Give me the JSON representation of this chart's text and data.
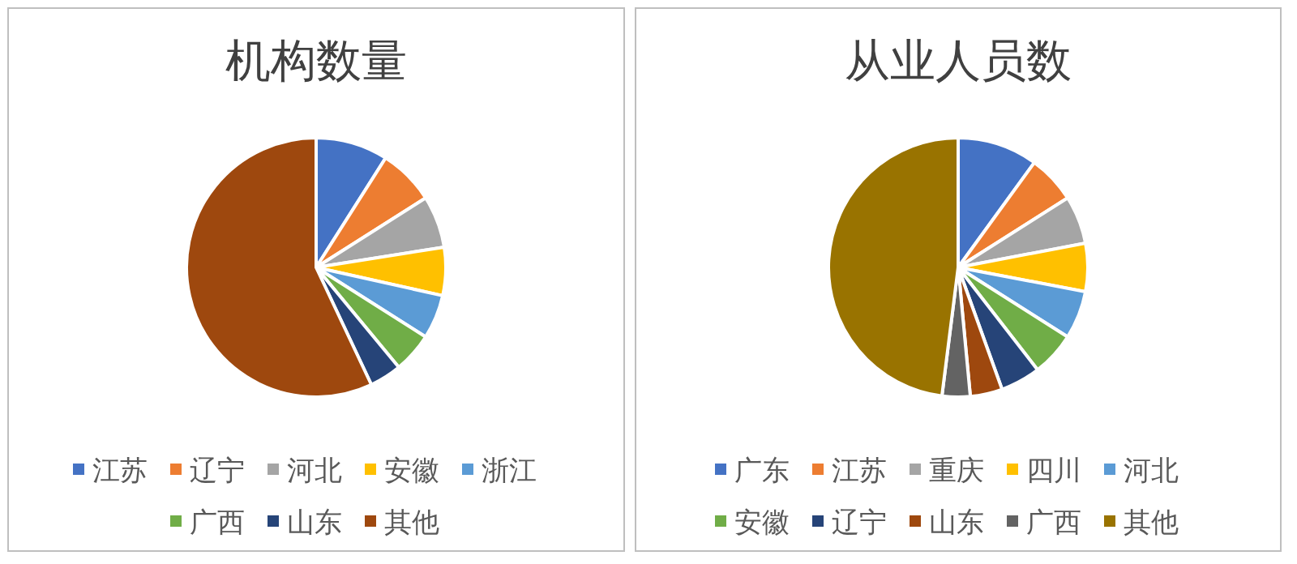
{
  "chart_data": [
    {
      "type": "pie",
      "title": "机构数量",
      "legend": "bottom",
      "categories": [
        "江苏",
        "辽宁",
        "河北",
        "安徽",
        "浙江",
        "广西",
        "山东",
        "其他"
      ],
      "values": [
        9,
        7,
        6.5,
        6,
        5.5,
        5,
        4,
        57
      ],
      "colors": [
        "#4472c4",
        "#ed7d31",
        "#a5a5a5",
        "#ffc000",
        "#5b9bd5",
        "#70ad47",
        "#264478",
        "#9e480e"
      ]
    },
    {
      "type": "pie",
      "title": "从业人员数",
      "legend": "bottom",
      "categories": [
        "广东",
        "江苏",
        "重庆",
        "四川",
        "河北",
        "安徽",
        "辽宁",
        "山东",
        "广西",
        "其他"
      ],
      "values": [
        10,
        6,
        6,
        6,
        6,
        5.5,
        5,
        4,
        3.5,
        48
      ],
      "colors": [
        "#4472c4",
        "#ed7d31",
        "#a5a5a5",
        "#ffc000",
        "#5b9bd5",
        "#70ad47",
        "#264478",
        "#9e480e",
        "#636363",
        "#997300"
      ]
    }
  ]
}
